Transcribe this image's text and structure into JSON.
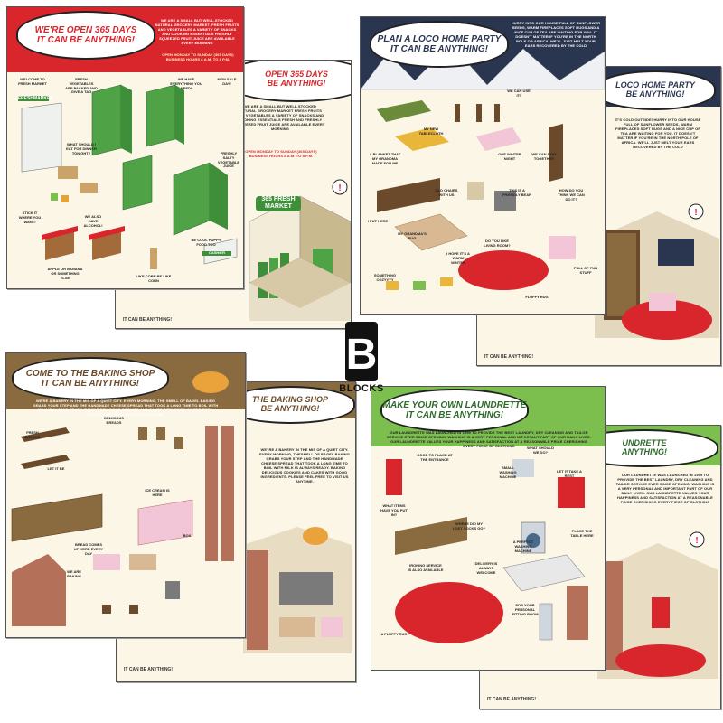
{
  "brand": {
    "logo_letter": "B",
    "logo_word": "BLOCKS"
  },
  "colors": {
    "red": "#d8262c",
    "green": "#7cbf4e",
    "brown": "#6b4a2b",
    "navy": "#2a3550",
    "paper": "#fbf6e6"
  },
  "market": {
    "title1": "WE'RE OPEN 365 DAYS",
    "title2": "IT CAN BE ANYTHING!",
    "title_back": "OPEN 365 DAYS",
    "title_back2": "BE ANYTHING!",
    "intro": "WE ARE A SMALL BUT WELL-STOCKED NATURAL GROCERY MARKET. FRESH FRUITS AND VEGETABLES A VARIETY OF SNACKS AND COOKING ESSENTIALS FRESHLY SQUEEZED FRUIT JUICE ARE AVAILABLE EVERY MORNING",
    "intro_back": "WE ARE A SMALL BUT WELL-STOCKED NATURAL GROCERY MARKET FRESH FRUITS AND VEGETABLES A VARIETY OF SNACKS AND COOKING ESSENTIALS FRESH AND FRESHLY SQUEEZED FRUIT JUICE ARE AVAILABLE EVERY MORNING",
    "hours": "OPEN MONDAY TO SUNDAY (365 DAYS) BUSINESS HOURS 8 A.M. TO 8 P.M.",
    "sign_fresh": "FRESHMARKET",
    "sign_store": "365 FRESH MARKET",
    "cashier": "CASHIER",
    "labels": [
      "WELCOME TO FRESH MARKET",
      "FRESH VEGETABLES ARE PACKED AND GIVE A TAG",
      "WE HAVE EVERYTHING YOU NEED!",
      "NEW SALE DAY!",
      "WHAT SHOULD I EAT FOR DINNER TONIGHT?",
      "FRESHLY SALTY VEGETABLE JUICE",
      "STICK IT WHERE YOU WANT!",
      "WE ALSO HAVE ALCOHOL!",
      "APPLE OR BANANA OR SOMETHING ELSE",
      "LIKE CORN BE LIKE CORN",
      "BE COOL PUPPY FOOD TOO"
    ],
    "bottom": "IT CAN BE ANYTHING!"
  },
  "party": {
    "title1": "PLAN A LOCO HOME PARTY",
    "title2": "IT CAN BE ANYTHING!",
    "title_back": "LOCO HOME PARTY",
    "title_back2": "BE ANYTHING!",
    "intro": "HURRY INTO OUR HOUSE FULL OF SUNFLOWER SEEDS, WARM FIREPLACES SOFT RUGS AND A NICE CUP OF TEA ARE WAITING FOR YOU. IT DOESN'T MATTER IF YOU'RE IN THE NORTH POLE OR AFRICA. WE'LL JUST MELT YOUR EARS RECOVERED BY THE COLD",
    "intro_back": "IT'S COLD OUTSIDE! HURRY INTO OUR HOUSE FULL OF SUNFLOWER SEEDS, WARM FIREPLACES SOFT RUGS AND A NICE CUP OF TEA ARE WAITING FOR YOU. IT DOESN'T MATTER IF YOU'RE IN THE NORTH POLE OF AFRICA. WE'LL JUST MELT YOUR EARS RECOVERED BY THE COLD",
    "labels": [
      "WE CAN USE IT!",
      "MY NEW TABLECLOTH",
      "A BLANKET THAT MY GRANDMA MADE FOR ME",
      "ONE WINTER NIGHT",
      "WE CAN STAY TOGETHER",
      "OLD CHAIRS WITH US",
      "THIS IS A FRIENDLY BEAR",
      "HOW DO YOU THINK WE CAN DO IT?",
      "I PUT HERE",
      "MY GRANDMA'S RUG",
      "I HOPE IT'S A WARM WINTER",
      "DO YOU LIKE LIVING ROOM?",
      "FULL OF FUN STUFF",
      "SOMETHING COZYYYY",
      "FLUFFY RUG"
    ],
    "bottom": "IT CAN BE ANYTHING!"
  },
  "bakery": {
    "title1": "COME TO THE BAKING SHOP",
    "title2": "IT CAN BE ANYTHING!",
    "title_back": "THE BAKING SHOP",
    "title_back2": "BE ANYTHING!",
    "intro": "WE'RE A BAKERY IN THE MIS OF A QUIET CITY. EVERY MORNING, THE SMELL OF BAGEL BAKING GRABS YOUR STEP AND THE HANDMADE CHEESE SPREAD THAT TOOK A LONG TIME TO BOIL WITH MILK IS ALWAYS READY. BAKING DELICIOUS COOKIES AND CAKES WITH GOOD INGREDIENTS, PLEASE FEEL FREE TO VISIT US ANYTIME",
    "intro_back": "WE' RE A BAKERY IN THE MIS OF A QUIET CITY. EVERY MORNING, THESMELL OF BAGEL BAKING GRABS YOUR STEP AND THE HANDMADE CHEESE SPREAD THAT TOOK A LONG TIME TO BOIL WITH MILK IS ALWAYS READY. BAKING DELICIOUS COOKIES AND CAKES WITH GOOD INGREDIENTS. PLEASE FEEL FREE TO VISIT US ANYTIME.",
    "labels": [
      "FRESH BREADS",
      "DELICIOUS BREADS",
      "LET IT BE",
      "ICE CREAM IS HERE",
      "WE ARE BAKING",
      "BREAD COMES UP HERE EVERY DAY",
      "BOX"
    ],
    "bottom": "IT CAN BE ANYTHING!"
  },
  "laundry": {
    "title1": "MAKE YOUR OWN LAUNDRETTE",
    "title2": "IT CAN BE ANYTHING!",
    "title_back": "UNDRETTE",
    "title_back2": "ANYTHING!",
    "intro": "OUR LAUNDRETTE WAS LAUNCHED IN 1999 TO PROVIDE THE BEST LAUNDRY, DRY CLEANING AND TAILOR SERVICE EVER SINCE OPENING. WASHING IS A VERY PERSONAL AND IMPORTANT PART OF OUR DAILY LIVES. OUR LAUNDRETTE VALUES YOUR HAPPINESS AND SATISFACTION AT A REASONABLE PRICE CHERISHING EVERY PIECE OF CLOTHING",
    "intro_back": "OUR LAUNDRETTE WAS LAUNCHED IN 1999 TO PROVIDE THE BEST LAUNDRY, DRY CLEANING AND TAILOR SERVICE EVER SINCE OPENING. WASHING IS A VERY PERSONAL AND IMPORTANT PART OF OUR DAILY LIVES. OUR LAUNDRETTE VALUES YOUR HAPPINESS AND SATISFACTION AT A REASONABLE PRICE CHERISHING EVERY PIECE OF CLOTHING",
    "labels": [
      "GOOD TO PLACE AT THE ENTRANCE",
      "SMALL WASHING MACHINE",
      "WHAT SHOULD WE DO?",
      "LET IT TAKE A REST",
      "WHAT ITEMS HAVE YOU PUT IN?",
      "WHERE DID MY LOST SOCKS GO?",
      "A PERFECT WASHING MACHINE",
      "PLACE THE TABLE HERE",
      "IRONING SERVICE IS ALSO AVAILABLE",
      "DELIVERY IS ALWAYS WELCOME",
      "FOR YOUR PERSONAL FITTING ROOM",
      "A FLUFFY RUG"
    ],
    "bottom": "IT CAN BE ANYTHING!"
  }
}
